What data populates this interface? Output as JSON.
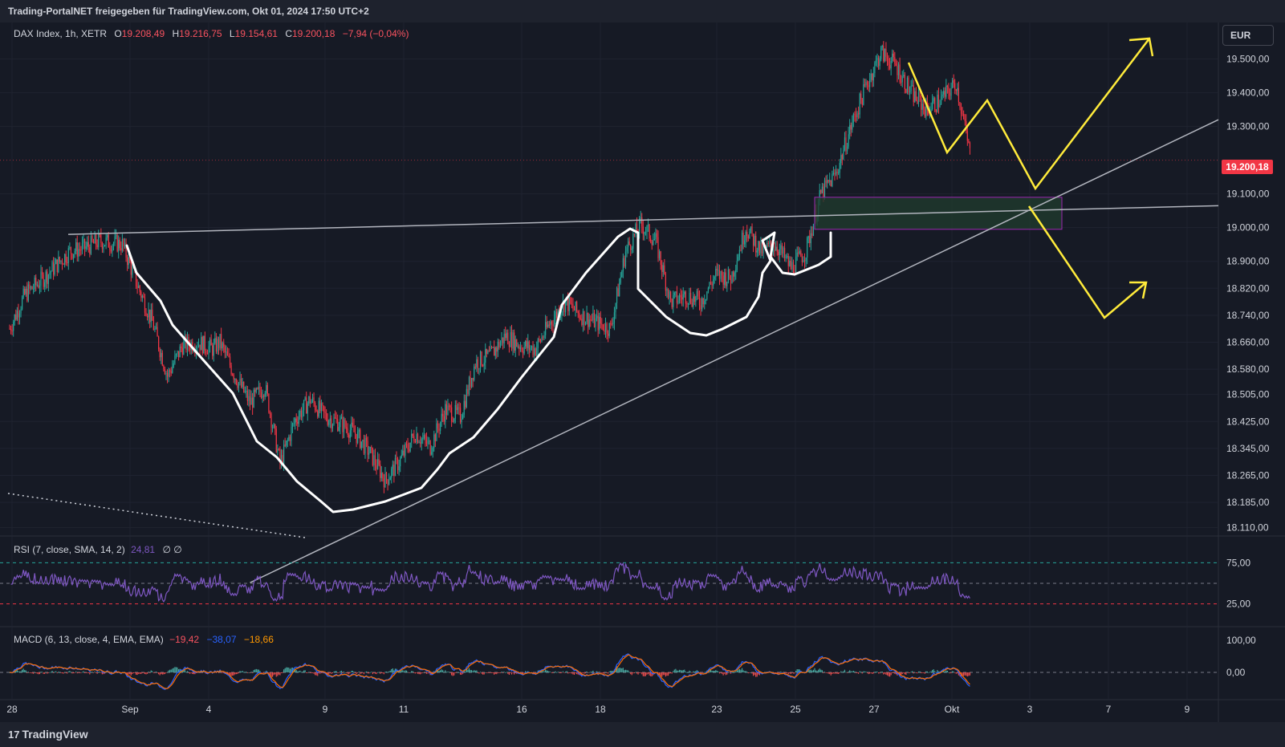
{
  "header": {
    "caption": "Trading-PortalNET freigegeben für TradingView.com, Okt 01, 2024 17:50 UTC+2"
  },
  "legend": {
    "symbol": "DAX Index, 1h, XETR",
    "o_label": "O",
    "o_value": "19.208,49",
    "h_label": "H",
    "h_value": "19.216,75",
    "l_label": "L",
    "l_value": "19.154,61",
    "c_label": "C",
    "c_value": "19.200,18",
    "change": "−7,94 (−0,04%)"
  },
  "currency_button": "EUR",
  "last_price_label": "19.200,18",
  "rsi": {
    "label": "RSI (7, close, SMA, 14, 2)",
    "value": "24,81",
    "extra": "∅  ∅",
    "upper": 75,
    "lower": 25,
    "ticks": [
      "75,00",
      "25,00"
    ]
  },
  "macd": {
    "label": "MACD (6, 13, close, 4, EMA, EMA)",
    "hist": "−19,42",
    "macd": "−38,07",
    "signal": "−18,66",
    "ticks": [
      "100,00",
      "0,00"
    ]
  },
  "footer": {
    "brand": "TradingView",
    "logo_icon": "tradingview-logo-icon"
  },
  "colors": {
    "background": "#161a25",
    "bull": "#26a69a",
    "bear": "#f23645",
    "trendline": "#b2b5be",
    "pattern": "#ffffff",
    "projection": "#ffeb3b",
    "zone_border": "#9c27b0",
    "zone_fill": "#1f3a2d",
    "rsi_line": "#7e57c2",
    "macd_line": "#2962ff",
    "signal_line": "#ff6d00"
  },
  "chart_data": {
    "type": "candlestick",
    "title": "DAX Index, 1h, XETR",
    "currency": "EUR",
    "y_ticks": [
      "19.500,00",
      "19.400,00",
      "19.300,00",
      "19.100,00",
      "19.000,00",
      "18.900,00",
      "18.820,00",
      "18.740,00",
      "18.660,00",
      "18.580,00",
      "18.505,00",
      "18.425,00",
      "18.345,00",
      "18.265,00",
      "18.185,00",
      "18.110,00"
    ],
    "x_ticks": [
      "28",
      "Sep",
      "4",
      "9",
      "11",
      "16",
      "18",
      "23",
      "25",
      "27",
      "Okt",
      "3",
      "7",
      "9"
    ],
    "ylim": [
      18090,
      19580
    ],
    "last_price": 19200.18,
    "series": [
      {
        "name": "path",
        "points": [
          [
            0,
            18700
          ],
          [
            2,
            18800
          ],
          [
            5,
            18860
          ],
          [
            8,
            18930
          ],
          [
            10,
            18940
          ],
          [
            12,
            18960
          ],
          [
            15,
            18950
          ],
          [
            17,
            18830
          ],
          [
            19,
            18720
          ],
          [
            21,
            18560
          ],
          [
            23,
            18650
          ],
          [
            25,
            18660
          ],
          [
            27,
            18640
          ],
          [
            28,
            18660
          ],
          [
            30,
            18560
          ],
          [
            32,
            18480
          ],
          [
            34,
            18530
          ],
          [
            36,
            18300
          ],
          [
            38,
            18430
          ],
          [
            40,
            18490
          ],
          [
            42,
            18440
          ],
          [
            44,
            18420
          ],
          [
            46,
            18390
          ],
          [
            48,
            18330
          ],
          [
            50,
            18250
          ],
          [
            52,
            18310
          ],
          [
            54,
            18390
          ],
          [
            56,
            18350
          ],
          [
            58,
            18460
          ],
          [
            60,
            18440
          ],
          [
            62,
            18600
          ],
          [
            64,
            18620
          ],
          [
            66,
            18680
          ],
          [
            68,
            18650
          ],
          [
            70,
            18640
          ],
          [
            72,
            18720
          ],
          [
            74,
            18780
          ],
          [
            76,
            18740
          ],
          [
            78,
            18720
          ],
          [
            80,
            18700
          ],
          [
            82,
            18930
          ],
          [
            84,
            19010
          ],
          [
            86,
            18960
          ],
          [
            88,
            18780
          ],
          [
            90,
            18800
          ],
          [
            92,
            18780
          ],
          [
            94,
            18860
          ],
          [
            96,
            18850
          ],
          [
            98,
            19000
          ],
          [
            100,
            18930
          ],
          [
            102,
            18950
          ],
          [
            104,
            18880
          ],
          [
            106,
            18930
          ],
          [
            108,
            19100
          ],
          [
            110,
            19160
          ],
          [
            112,
            19300
          ],
          [
            114,
            19420
          ],
          [
            116,
            19520
          ],
          [
            118,
            19480
          ],
          [
            120,
            19400
          ],
          [
            122,
            19350
          ],
          [
            124,
            19380
          ],
          [
            126,
            19430
          ],
          [
            128,
            19200
          ]
        ]
      }
    ],
    "resistance_level": 19020,
    "support_trendline": {
      "from": [
        -8,
        17980
      ],
      "to": [
        176,
        19320
      ]
    },
    "demand_zone": [
      18995,
      19090
    ],
    "projection_paths": [
      [
        [
          114,
          19520
        ],
        [
          122,
          19250
        ],
        [
          128,
          19400
        ],
        [
          138,
          19120
        ],
        [
          152,
          19580
        ]
      ],
      [
        [
          138,
          19080
        ],
        [
          148,
          18740
        ],
        [
          154,
          18840
        ]
      ]
    ],
    "annotations": [],
    "grid": true
  }
}
